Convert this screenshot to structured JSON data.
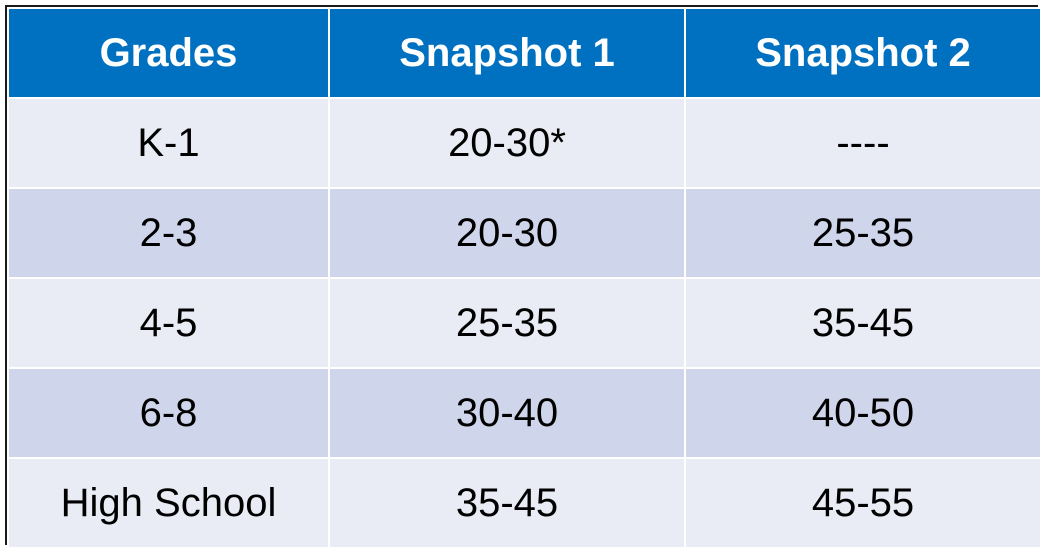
{
  "table": {
    "header": [
      "Grades",
      "Snapshot 1",
      "Snapshot 2"
    ],
    "rows": [
      [
        "K-1",
        "20-30*",
        "----"
      ],
      [
        "2-3",
        "20-30",
        "25-35"
      ],
      [
        "4-5",
        "25-35",
        "35-45"
      ],
      [
        "6-8",
        "30-40",
        "40-50"
      ],
      [
        "High School",
        "35-45",
        "45-55"
      ]
    ]
  }
}
